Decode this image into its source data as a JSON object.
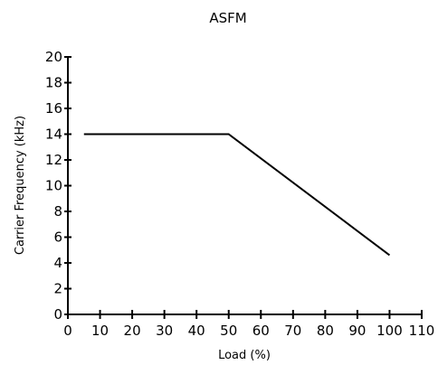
{
  "chart_data": {
    "type": "line",
    "title": "ASFM",
    "xlabel": "Load (%)",
    "ylabel": "Carrier Frequency (kHz)",
    "xlim": [
      0,
      110
    ],
    "ylim": [
      0,
      20
    ],
    "x_ticks": [
      0,
      10,
      20,
      30,
      40,
      50,
      60,
      70,
      80,
      90,
      100,
      110
    ],
    "y_ticks": [
      0,
      2,
      4,
      6,
      8,
      10,
      12,
      14,
      16,
      18,
      20
    ],
    "grid": false,
    "legend": "none",
    "series": [
      {
        "x": [
          5,
          50,
          100
        ],
        "y": [
          14,
          14,
          4.6
        ]
      }
    ],
    "colors": {
      "line": "#000000",
      "axis": "#000000"
    }
  }
}
